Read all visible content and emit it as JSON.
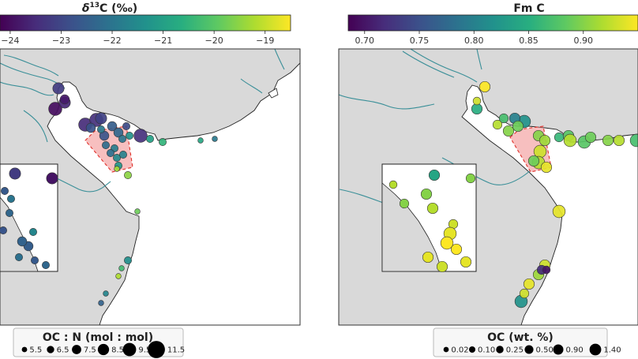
{
  "chart_data": [
    {
      "type": "scatter",
      "panel": "left",
      "colorbar": {
        "title": "δ¹³C (‰)",
        "title_base": "δ",
        "title_sup": "13",
        "title_rest": "C (‰)",
        "colormap": "viridis",
        "ticks": [
          "−24",
          "−23",
          "−22",
          "−21",
          "−20",
          "−19"
        ],
        "tick_values": [
          -24,
          -23,
          -22,
          -21,
          -20,
          -19
        ],
        "vmin": -24.2,
        "vmax": -18.5
      },
      "legend": {
        "title": "OC : N (mol : mol)",
        "labels": [
          "5.5",
          "6.5",
          "7.5",
          "8.5",
          "9.5",
          "11.5"
        ],
        "values": [
          5.5,
          6.5,
          7.5,
          8.5,
          9.5,
          11.5
        ]
      },
      "points": [
        {
          "v": -24.0,
          "s": 9.5
        },
        {
          "v": -23.5,
          "s": 9.5
        },
        {
          "v": -23.4,
          "s": 9.5
        },
        {
          "v": -23.1,
          "s": 8.5
        },
        {
          "v": -23.6,
          "s": 8.5
        },
        {
          "v": -23.2,
          "s": 8.5
        },
        {
          "v": -22.7,
          "s": 7.5
        },
        {
          "v": -23.4,
          "s": 9.5
        },
        {
          "v": -22.5,
          "s": 7.5
        },
        {
          "v": -22.3,
          "s": 7.5
        },
        {
          "v": -22.0,
          "s": 6.5
        },
        {
          "v": -21.8,
          "s": 6.5
        },
        {
          "v": -22.8,
          "s": 7.5
        },
        {
          "v": -22.9,
          "s": 6.5
        },
        {
          "v": -21.5,
          "s": 6.5
        },
        {
          "v": -21.2,
          "s": 6.5
        },
        {
          "v": -19.5,
          "s": 6.5
        },
        {
          "v": -20.5,
          "s": 6.5
        },
        {
          "v": -21.0,
          "s": 6.5
        },
        {
          "v": -22.2,
          "s": 6.5
        },
        {
          "v": -20.8,
          "s": 5.5
        },
        {
          "v": -21.9,
          "s": 5.5
        },
        {
          "v": -19.8,
          "s": 5.5
        },
        {
          "v": -19.2,
          "s": 5.5
        },
        {
          "v": -21.4,
          "s": 6.5
        },
        {
          "v": -21.6,
          "s": 5.5
        },
        {
          "v": -22.4,
          "s": 5.5
        },
        {
          "v": -23.8,
          "s": 7.5
        },
        {
          "v": -22.1,
          "s": 6.5
        },
        {
          "v": -21.7,
          "s": 6.5
        },
        {
          "v": -21.3,
          "s": 6.5
        },
        {
          "v": -21.9,
          "s": 6.5
        },
        {
          "v": -19.3,
          "s": 5.5
        },
        {
          "v": -20.3,
          "s": 5.5
        }
      ]
    },
    {
      "type": "scatter",
      "panel": "right",
      "colorbar": {
        "title": "Fm C",
        "colormap": "viridis",
        "ticks": [
          "0.70",
          "0.75",
          "0.80",
          "0.85",
          "0.90"
        ],
        "tick_values": [
          0.7,
          0.75,
          0.8,
          0.85,
          0.9
        ],
        "vmin": 0.685,
        "vmax": 0.95
      },
      "legend": {
        "title": "OC (wt. %)",
        "labels": [
          "0.02",
          "0.10",
          "0.25",
          "0.50",
          "0.90",
          "1.40"
        ],
        "values": [
          0.02,
          0.1,
          0.25,
          0.5,
          0.9,
          1.4
        ]
      },
      "points": [
        {
          "v": 0.87,
          "s": 0.25
        },
        {
          "v": 0.85,
          "s": 0.5
        },
        {
          "v": 0.93,
          "s": 0.1
        },
        {
          "v": 0.82,
          "s": 0.9
        },
        {
          "v": 0.92,
          "s": 0.25
        },
        {
          "v": 0.88,
          "s": 0.5
        },
        {
          "v": 0.86,
          "s": 0.25
        },
        {
          "v": 0.8,
          "s": 0.5
        },
        {
          "v": 0.9,
          "s": 0.5
        },
        {
          "v": 0.91,
          "s": 0.5
        },
        {
          "v": 0.93,
          "s": 0.9
        },
        {
          "v": 0.92,
          "s": 0.9
        },
        {
          "v": 0.94,
          "s": 0.5
        },
        {
          "v": 0.89,
          "s": 0.5
        },
        {
          "v": 0.88,
          "s": 0.9
        },
        {
          "v": 0.87,
          "s": 0.9
        },
        {
          "v": 0.9,
          "s": 0.5
        },
        {
          "v": 0.92,
          "s": 0.5
        },
        {
          "v": 0.94,
          "s": 0.9
        },
        {
          "v": 0.93,
          "s": 0.5
        },
        {
          "v": 0.91,
          "s": 0.5
        },
        {
          "v": 0.72,
          "s": 0.25
        },
        {
          "v": 0.7,
          "s": 0.1
        },
        {
          "v": 0.82,
          "s": 0.9
        },
        {
          "v": 0.93,
          "s": 0.25
        },
        {
          "v": 0.94,
          "s": 0.5
        },
        {
          "v": 0.89,
          "s": 0.5
        },
        {
          "v": 0.9,
          "s": 0.5
        },
        {
          "v": 0.89,
          "s": 0.5
        },
        {
          "v": 0.92,
          "s": 0.9
        },
        {
          "v": 0.95,
          "s": 0.5
        }
      ]
    }
  ]
}
